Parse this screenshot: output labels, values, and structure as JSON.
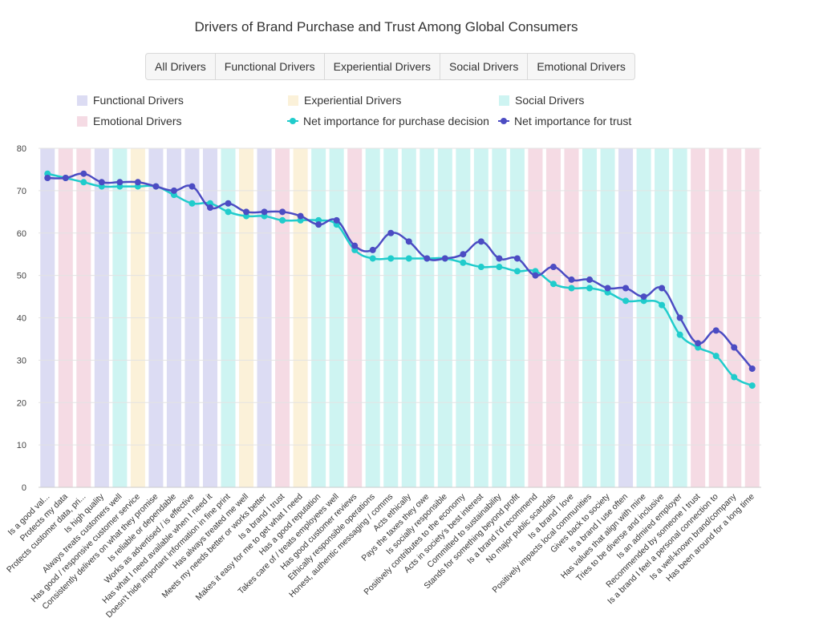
{
  "colors": {
    "functional": "#dcdcf3",
    "experiential": "#fbf1d9",
    "social": "#cef4f2",
    "emotional": "#f5dbe4",
    "purchase": "#20cccc",
    "trust": "#4c4cc3"
  },
  "tabs": [
    "All Drivers",
    "Functional Drivers",
    "Experiential Drivers",
    "Social Drivers",
    "Emotional Drivers"
  ],
  "legend": {
    "functional": "Functional Drivers",
    "experiential": "Experiential Drivers",
    "social": "Social Drivers",
    "emotional": "Emotional Drivers",
    "purchase": "Net importance for purchase decision",
    "trust": "Net importance for trust"
  },
  "chart_data": {
    "type": "line",
    "title": "Drivers of Brand Purchase and Trust Among Global Consumers",
    "ylim": [
      0,
      80
    ],
    "yticks": [
      0,
      10,
      20,
      30,
      40,
      50,
      60,
      70,
      80
    ],
    "grid": true,
    "legend_position": "top",
    "categories": [
      "Is a good val...",
      "Protects my data",
      "Protects customer data, pri...",
      "Is high quality",
      "Always treats customers well",
      "Has good / responsive customer service",
      "Consistently delivers on what they promise",
      "Is reliable or dependable",
      "Works as advertised / is effective",
      "Has what I need available when I need it",
      "Doesn't hide important information in fine print",
      "Has always treated me well",
      "Meets my needs better or works better",
      "Is a brand I trust",
      "Makes it easy for me to get what I need",
      "Has a good reputation",
      "Takes care of / treats employees well",
      "Has good customer reviews",
      "Ethically responsible operations",
      "Honest, authentic messaging / comms",
      "Acts ethically",
      "Pays the taxes they owe",
      "Is socially responsible",
      "Positively contributes to the economy",
      "Acts in society's best interest",
      "Committed to sustainability",
      "Stands for something beyond profit",
      "Is a brand I'd recommend",
      "No major public scandals",
      "Is a brand I love",
      "Positively impacts local communities",
      "Gives back to society",
      "Is a brand I use often",
      "Has values that align with mine",
      "Tries to be diverse and inclusive",
      "Is an admired employer",
      "Recommended by someone I trust",
      "Is a brand I feel a personal connection to",
      "Is a well-known brand/company",
      "Has been around for a long time"
    ],
    "category_types": [
      "functional",
      "emotional",
      "emotional",
      "functional",
      "social",
      "experiential",
      "functional",
      "functional",
      "functional",
      "functional",
      "social",
      "experiential",
      "functional",
      "emotional",
      "experiential",
      "social",
      "social",
      "emotional",
      "social",
      "social",
      "social",
      "social",
      "social",
      "social",
      "social",
      "social",
      "social",
      "emotional",
      "emotional",
      "emotional",
      "social",
      "social",
      "functional",
      "social",
      "social",
      "social",
      "emotional",
      "emotional",
      "emotional",
      "emotional"
    ],
    "series": [
      {
        "name": "Net importance for purchase decision",
        "color_key": "purchase",
        "values": [
          74,
          73,
          72,
          71,
          71,
          71,
          71,
          69,
          67,
          67,
          65,
          64,
          64,
          63,
          63,
          63,
          62,
          56,
          54,
          54,
          54,
          54,
          54,
          53,
          52,
          52,
          51,
          51,
          48,
          47,
          47,
          46,
          44,
          44,
          43,
          36,
          33,
          31,
          26,
          24
        ]
      },
      {
        "name": "Net importance for trust",
        "color_key": "trust",
        "values": [
          73,
          73,
          74,
          72,
          72,
          72,
          71,
          70,
          71,
          66,
          67,
          65,
          65,
          65,
          64,
          62,
          63,
          57,
          56,
          60,
          58,
          54,
          54,
          55,
          58,
          54,
          54,
          50,
          52,
          49,
          49,
          47,
          47,
          45,
          47,
          40,
          34,
          37,
          33,
          28
        ]
      }
    ]
  }
}
